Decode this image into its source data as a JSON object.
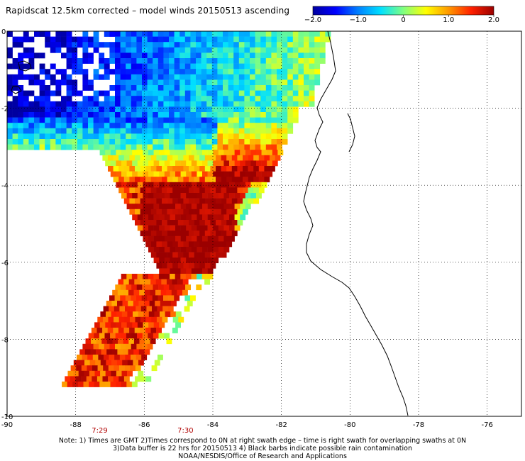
{
  "title": "Rapidscat 12.5km corrected – model winds 20150513 ascending",
  "colorbar": {
    "ticks": [
      "−2.0",
      "−1.0",
      "0",
      "1.0",
      "2.0"
    ],
    "tick_values": [
      -2.0,
      -1.0,
      0,
      1.0,
      2.0
    ],
    "range": [
      -2.0,
      2.0
    ],
    "colors": [
      "#0000a0",
      "#0000ff",
      "#0080ff",
      "#00e0ff",
      "#80ff80",
      "#ffff00",
      "#ff9900",
      "#ff2000",
      "#9b0000"
    ]
  },
  "map": {
    "lon_range": [
      -90,
      -75
    ],
    "lat_range": [
      -10,
      0
    ],
    "lon_ticks": [
      "-90",
      "-88",
      "-86",
      "-84",
      "-82",
      "-80",
      "-78",
      "-76"
    ],
    "lon_tick_values": [
      -90,
      -88,
      -86,
      -84,
      -82,
      -80,
      -78,
      -76
    ],
    "lat_ticks": [
      "0",
      "-2",
      "-4",
      "-6",
      "-8",
      "-10"
    ],
    "lat_tick_values": [
      0,
      -2,
      -4,
      -6,
      -8,
      -10
    ],
    "grid": true,
    "land_color": "#ffffff",
    "coast_color": "#000000",
    "time_labels": [
      {
        "text": "7:29",
        "lon": -87.3
      },
      {
        "text": "7:30",
        "lon": -84.8
      }
    ]
  },
  "notes": [
    "Note: 1) Times are GMT 2)Times correspond to 0N at right swath edge – time is right swath for overlapping swaths at 0N",
    "3)Data buffer is 22 hrs for 20150513 4) Black barbs indicate possible rain contamination",
    "NOAA/NESDIS/Office of Research and Applications"
  ]
}
